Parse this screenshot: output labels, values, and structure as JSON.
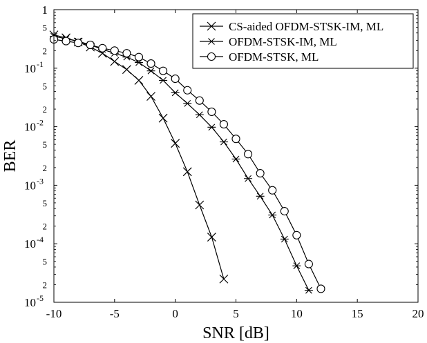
{
  "chart_data": {
    "type": "line",
    "xlabel": "SNR [dB]",
    "ylabel": "BER",
    "xlim": [
      -10,
      20
    ],
    "ylim": [
      1e-05,
      1
    ],
    "yscale": "log",
    "grid": false,
    "legend_position": "top-right",
    "x_ticks": [
      "-10",
      "-5",
      "0",
      "5",
      "10",
      "15",
      "20"
    ],
    "y_major_ticks": [
      {
        "value": 1,
        "label": "1"
      },
      {
        "value": 0.1,
        "label": "10",
        "exp": "-1"
      },
      {
        "value": 0.01,
        "label": "10",
        "exp": "-2"
      },
      {
        "value": 0.001,
        "label": "10",
        "exp": "-3"
      },
      {
        "value": 0.0001,
        "label": "10",
        "exp": "-4"
      },
      {
        "value": 1e-05,
        "label": "10",
        "exp": "-5"
      }
    ],
    "y_minor_labels": [
      "5",
      "2"
    ],
    "series": [
      {
        "name": "CS-aided OFDM-STSK-IM, ML",
        "marker": "x",
        "x": [
          -10,
          -9,
          -8,
          -7,
          -6,
          -5,
          -4,
          -3,
          -2,
          -1,
          0,
          1,
          2,
          3,
          4
        ],
        "y": [
          0.37,
          0.33,
          0.28,
          0.23,
          0.18,
          0.13,
          0.095,
          0.062,
          0.033,
          0.014,
          0.0052,
          0.0017,
          0.00046,
          0.00013,
          2.5e-05
        ]
      },
      {
        "name": "OFDM-STSK-IM, ML",
        "marker": "asterisk",
        "x": [
          -10,
          -9,
          -8,
          -7,
          -6,
          -5,
          -4,
          -3,
          -2,
          -1,
          0,
          1,
          2,
          3,
          4,
          5,
          6,
          7,
          8,
          9,
          10,
          11
        ],
        "y": [
          0.35,
          0.32,
          0.29,
          0.25,
          0.21,
          0.18,
          0.155,
          0.125,
          0.09,
          0.062,
          0.038,
          0.025,
          0.016,
          0.0098,
          0.0055,
          0.0028,
          0.0013,
          0.00065,
          0.00031,
          0.00012,
          4.2e-05,
          1.6e-05
        ]
      },
      {
        "name": "OFDM-STSK, ML",
        "marker": "circle",
        "x": [
          -10,
          -9,
          -8,
          -7,
          -6,
          -5,
          -4,
          -3,
          -2,
          -1,
          0,
          1,
          2,
          3,
          4,
          5,
          6,
          7,
          8,
          9,
          10,
          11,
          12
        ],
        "y": [
          0.31,
          0.29,
          0.27,
          0.25,
          0.22,
          0.2,
          0.18,
          0.155,
          0.12,
          0.09,
          0.066,
          0.042,
          0.028,
          0.018,
          0.011,
          0.0062,
          0.0034,
          0.0016,
          0.00082,
          0.00036,
          0.00014,
          4.5e-05,
          1.7e-05
        ]
      }
    ]
  }
}
